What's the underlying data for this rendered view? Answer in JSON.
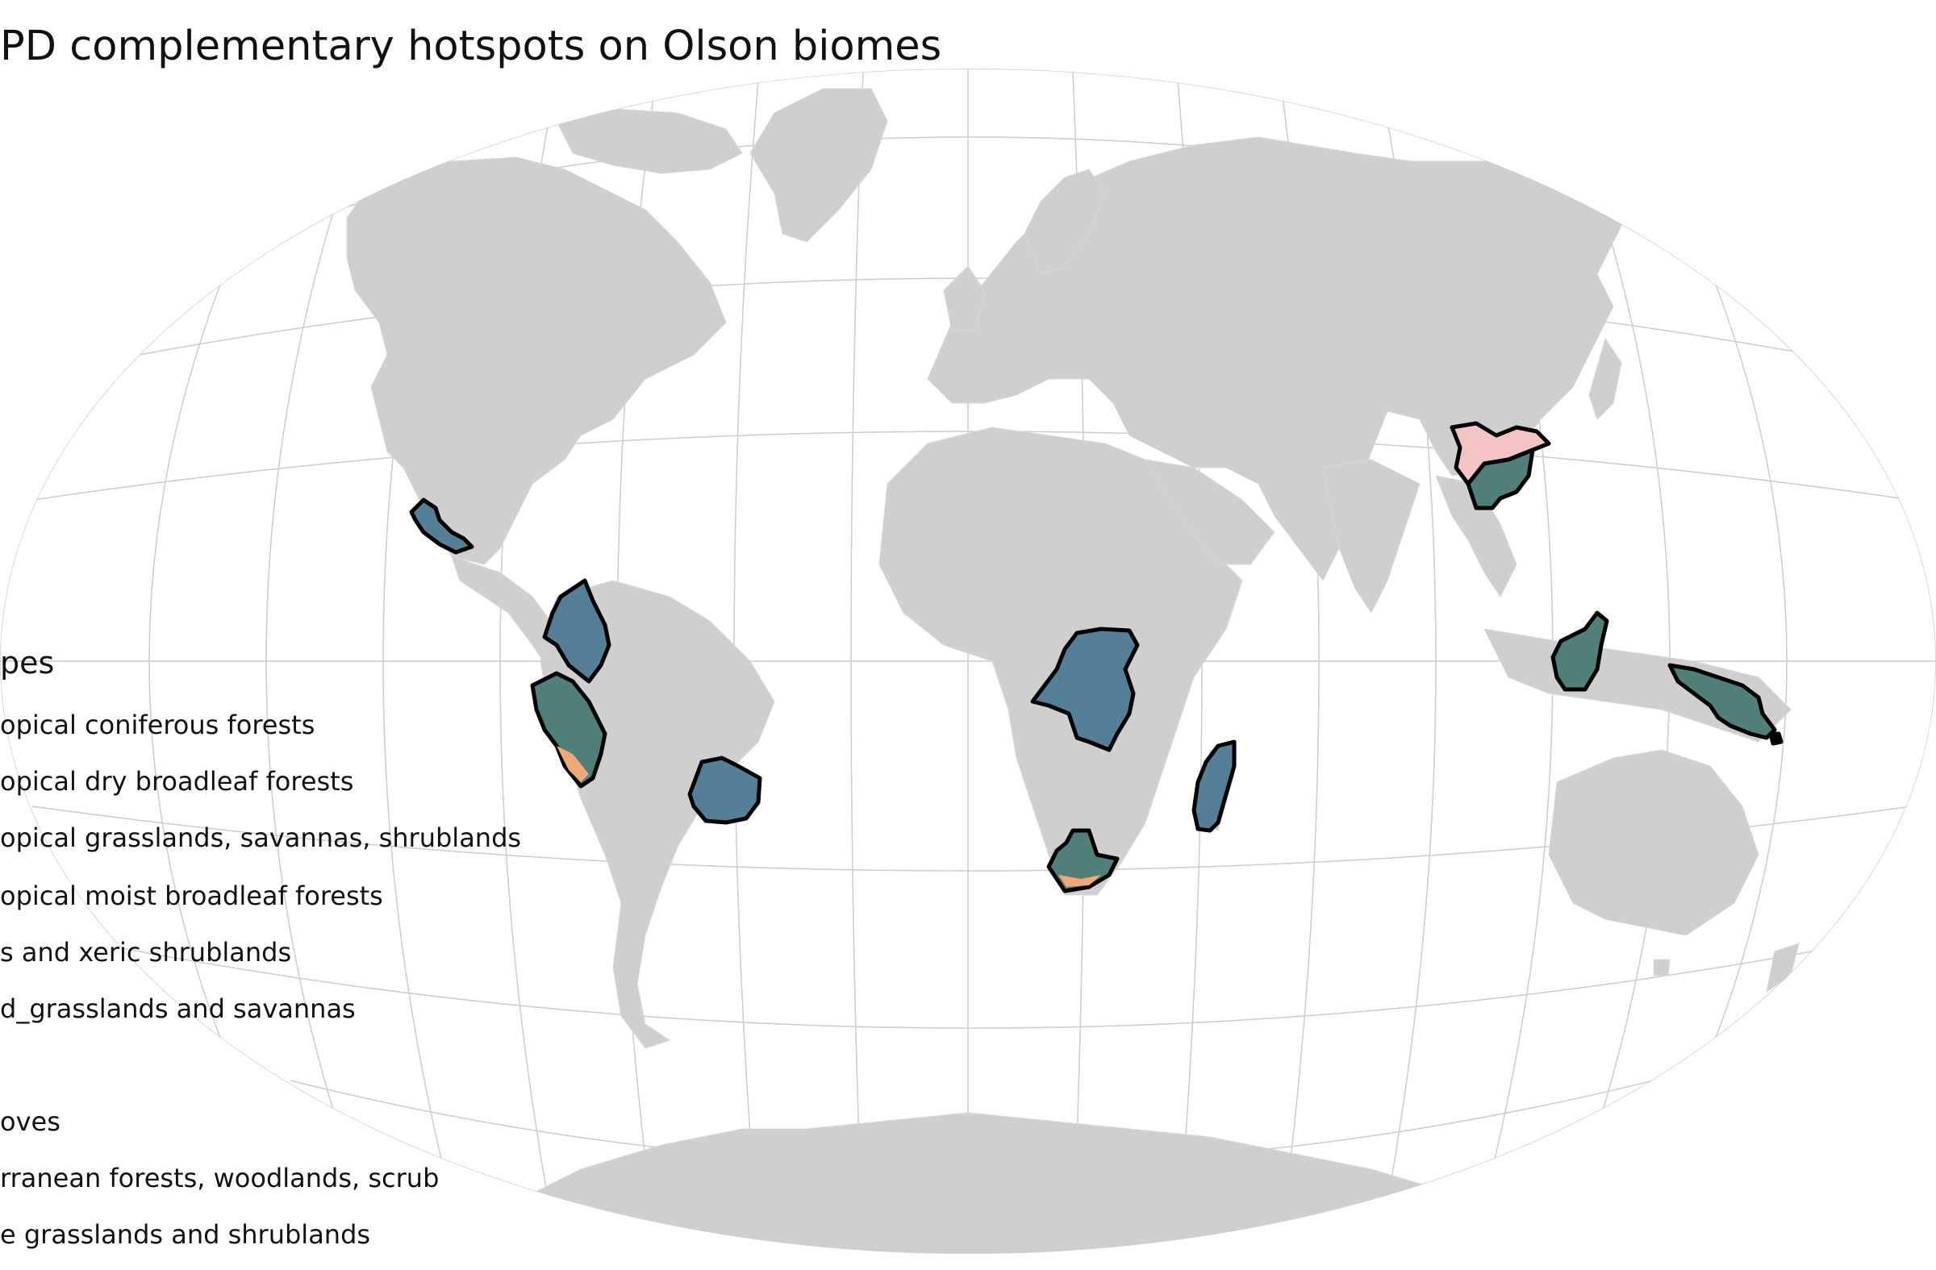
{
  "title": "PD complementary hotspots on Olson biomes",
  "legend": {
    "title": "pes",
    "items": [
      "opical coniferous forests",
      "opical dry broadleaf forests",
      "opical grasslands, savannas, shrublands",
      "opical moist broadleaf forests",
      "s and xeric shrublands",
      "d_grasslands and savannas",
      "",
      "oves",
      "rranean forests, woodlands, scrub",
      "e grasslands and shrublands"
    ]
  },
  "colors": {
    "land": "#cfcfcf",
    "graticule": "#c8c8c8",
    "hotspot_outline": "#000000",
    "biome_tropical_moist": "#4f7f78",
    "biome_blue": "#557f96",
    "biome_pink": "#f4c3c3",
    "biome_orange": "#f0a878"
  },
  "hotspots": [
    "Mexico",
    "Northern Andes",
    "Peru",
    "Cerrado",
    "Congo Basin",
    "South Africa",
    "Madagascar",
    "Southern China",
    "Borneo",
    "New Guinea"
  ]
}
